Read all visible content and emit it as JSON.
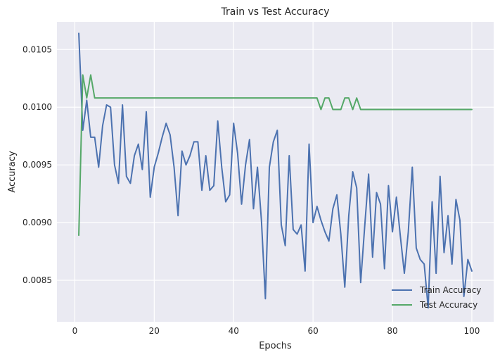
{
  "chart_data": {
    "type": "line",
    "title": "Train vs Test Accuracy",
    "xlabel": "Epochs",
    "ylabel": "Accuracy",
    "xlim": [
      -4.5,
      105.5
    ],
    "ylim": [
      0.00814,
      0.01074
    ],
    "xticks": [
      0,
      20,
      40,
      60,
      80,
      100
    ],
    "yticks": [
      0.0085,
      0.009,
      0.0095,
      0.01,
      0.0105
    ],
    "ytick_labels": [
      "0.0085",
      "0.0090",
      "0.0095",
      "0.0100",
      "0.0105"
    ],
    "grid": true,
    "legend_position": "lower-right",
    "x": [
      1,
      2,
      3,
      4,
      5,
      6,
      7,
      8,
      9,
      10,
      11,
      12,
      13,
      14,
      15,
      16,
      17,
      18,
      19,
      20,
      21,
      22,
      23,
      24,
      25,
      26,
      27,
      28,
      29,
      30,
      31,
      32,
      33,
      34,
      35,
      36,
      37,
      38,
      39,
      40,
      41,
      42,
      43,
      44,
      45,
      46,
      47,
      48,
      49,
      50,
      51,
      52,
      53,
      54,
      55,
      56,
      57,
      58,
      59,
      60,
      61,
      62,
      63,
      64,
      65,
      66,
      67,
      68,
      69,
      70,
      71,
      72,
      73,
      74,
      75,
      76,
      77,
      78,
      79,
      80,
      81,
      82,
      83,
      84,
      85,
      86,
      87,
      88,
      89,
      90,
      91,
      92,
      93,
      94,
      95,
      96,
      97,
      98,
      99,
      100
    ],
    "series": [
      {
        "name": "Train Accuracy",
        "color": "#4c72b0",
        "values": [
          0.01064,
          0.0098,
          0.01006,
          0.00974,
          0.00974,
          0.00948,
          0.00984,
          0.01002,
          0.01,
          0.0095,
          0.00934,
          0.01002,
          0.0094,
          0.00934,
          0.00958,
          0.00968,
          0.00946,
          0.00996,
          0.00922,
          0.00948,
          0.0096,
          0.00974,
          0.00986,
          0.00976,
          0.00948,
          0.00906,
          0.00962,
          0.0095,
          0.00958,
          0.0097,
          0.0097,
          0.00928,
          0.00958,
          0.00928,
          0.00932,
          0.00988,
          0.00948,
          0.00918,
          0.00924,
          0.00986,
          0.0096,
          0.00916,
          0.0095,
          0.00972,
          0.00912,
          0.00948,
          0.00902,
          0.00834,
          0.00948,
          0.0097,
          0.0098,
          0.00898,
          0.0088,
          0.00958,
          0.00894,
          0.0089,
          0.00898,
          0.00858,
          0.00968,
          0.009,
          0.00914,
          0.00902,
          0.00892,
          0.00884,
          0.00912,
          0.00924,
          0.0089,
          0.00844,
          0.00906,
          0.00944,
          0.0093,
          0.00848,
          0.00896,
          0.00942,
          0.0087,
          0.00926,
          0.00916,
          0.0086,
          0.00932,
          0.00892,
          0.00922,
          0.00888,
          0.00856,
          0.00892,
          0.00948,
          0.00878,
          0.00868,
          0.00864,
          0.00826,
          0.00918,
          0.00856,
          0.0094,
          0.00874,
          0.00906,
          0.00864,
          0.0092,
          0.00902,
          0.00836,
          0.00868,
          0.00858
        ]
      },
      {
        "name": "Test Accuracy",
        "color": "#55a868",
        "values": [
          0.00889,
          0.01028,
          0.01008,
          0.01028,
          0.01008,
          0.01008,
          0.01008,
          0.01008,
          0.01008,
          0.01008,
          0.01008,
          0.01008,
          0.01008,
          0.01008,
          0.01008,
          0.01008,
          0.01008,
          0.01008,
          0.01008,
          0.01008,
          0.01008,
          0.01008,
          0.01008,
          0.01008,
          0.01008,
          0.01008,
          0.01008,
          0.01008,
          0.01008,
          0.01008,
          0.01008,
          0.01008,
          0.01008,
          0.01008,
          0.01008,
          0.01008,
          0.01008,
          0.01008,
          0.01008,
          0.01008,
          0.01008,
          0.01008,
          0.01008,
          0.01008,
          0.01008,
          0.01008,
          0.01008,
          0.01008,
          0.01008,
          0.01008,
          0.01008,
          0.01008,
          0.01008,
          0.01008,
          0.01008,
          0.01008,
          0.01008,
          0.01008,
          0.01008,
          0.01008,
          0.01008,
          0.00998,
          0.01008,
          0.01008,
          0.00998,
          0.00998,
          0.00998,
          0.01008,
          0.01008,
          0.00998,
          0.01008,
          0.00998,
          0.00998,
          0.00998,
          0.00998,
          0.00998,
          0.00998,
          0.00998,
          0.00998,
          0.00998,
          0.00998,
          0.00998,
          0.00998,
          0.00998,
          0.00998,
          0.00998,
          0.00998,
          0.00998,
          0.00998,
          0.00998,
          0.00998,
          0.00998,
          0.00998,
          0.00998,
          0.00998,
          0.00998,
          0.00998,
          0.00998,
          0.00998,
          0.00998
        ]
      }
    ]
  }
}
